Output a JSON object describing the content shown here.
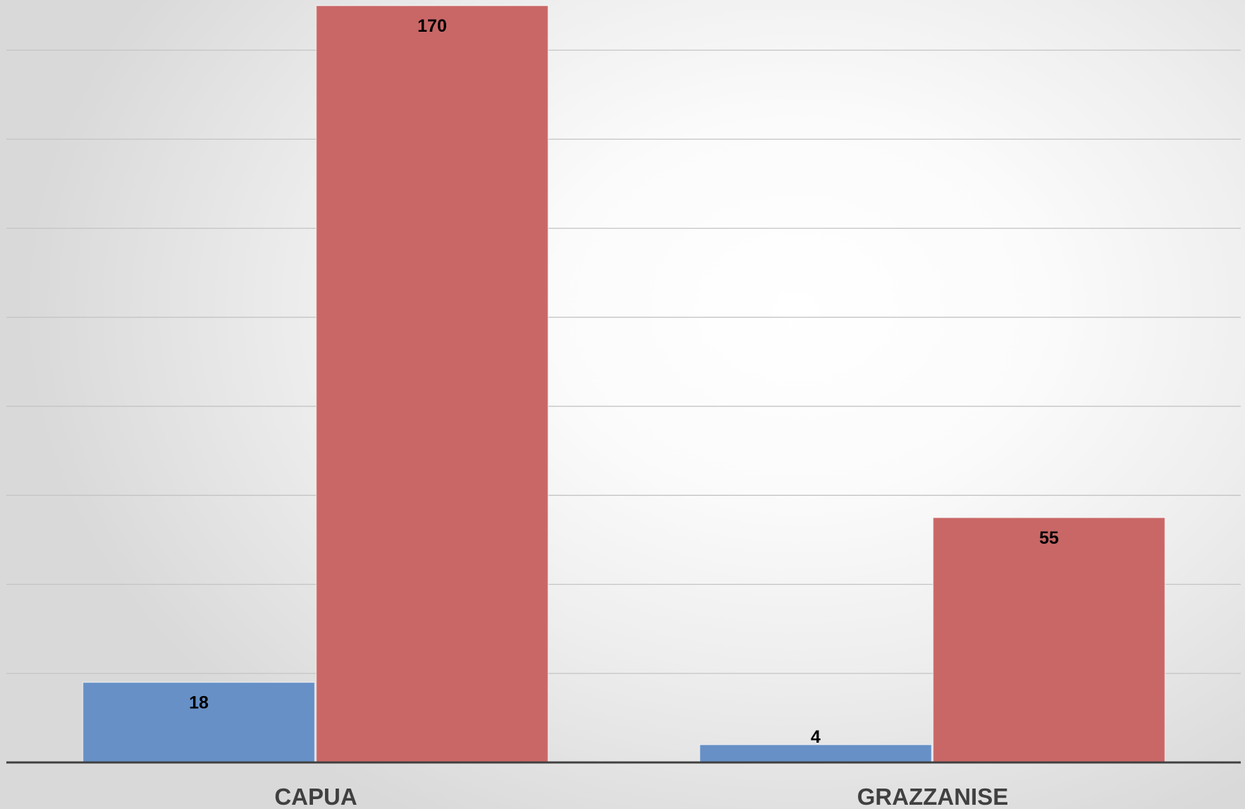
{
  "chart_data": {
    "type": "bar",
    "categories": [
      "CAPUA",
      "GRAZZANISE"
    ],
    "series": [
      {
        "color": "#6690c6",
        "values": [
          18,
          4
        ]
      },
      {
        "color": "#c96766",
        "values": [
          170,
          55
        ]
      }
    ],
    "ylim": [
      0,
      170
    ],
    "gridline_step": 20,
    "grid": true,
    "data_labels": true,
    "title": "",
    "xlabel": "",
    "ylabel": ""
  }
}
